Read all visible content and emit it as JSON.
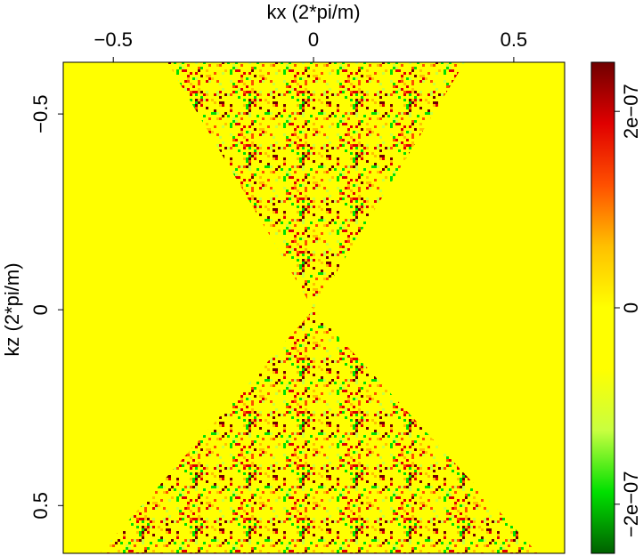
{
  "chart_data": {
    "type": "image",
    "xlabel": "kx (2*pi/m)",
    "ylabel": "kz (2*pi/m)",
    "xlim": [
      -0.625,
      0.627
    ],
    "xticks": [
      {
        "value": -0.5,
        "label": "−0.5"
      },
      0,
      0.5
    ],
    "ylim": [
      -0.632,
      0.622
    ],
    "yticks": [
      {
        "value": -0.5,
        "label": "−0.5"
      },
      0,
      0.5
    ],
    "y_inverted": true,
    "x_axis_position": "top",
    "colorbar": {
      "clim": [
        -2.5e-07,
        2.5e-07
      ],
      "ticks": [
        {
          "value": -2e-07,
          "label": "−2e−07"
        },
        0,
        {
          "value": 2e-07,
          "label": "2e−07"
        }
      ],
      "colormap": [
        "#006000",
        "#00e000",
        "#c8ff40",
        "#ffff00",
        "#ffff00",
        "#ffc000",
        "#ff5000",
        "#e00000",
        "#700000"
      ]
    }
  }
}
